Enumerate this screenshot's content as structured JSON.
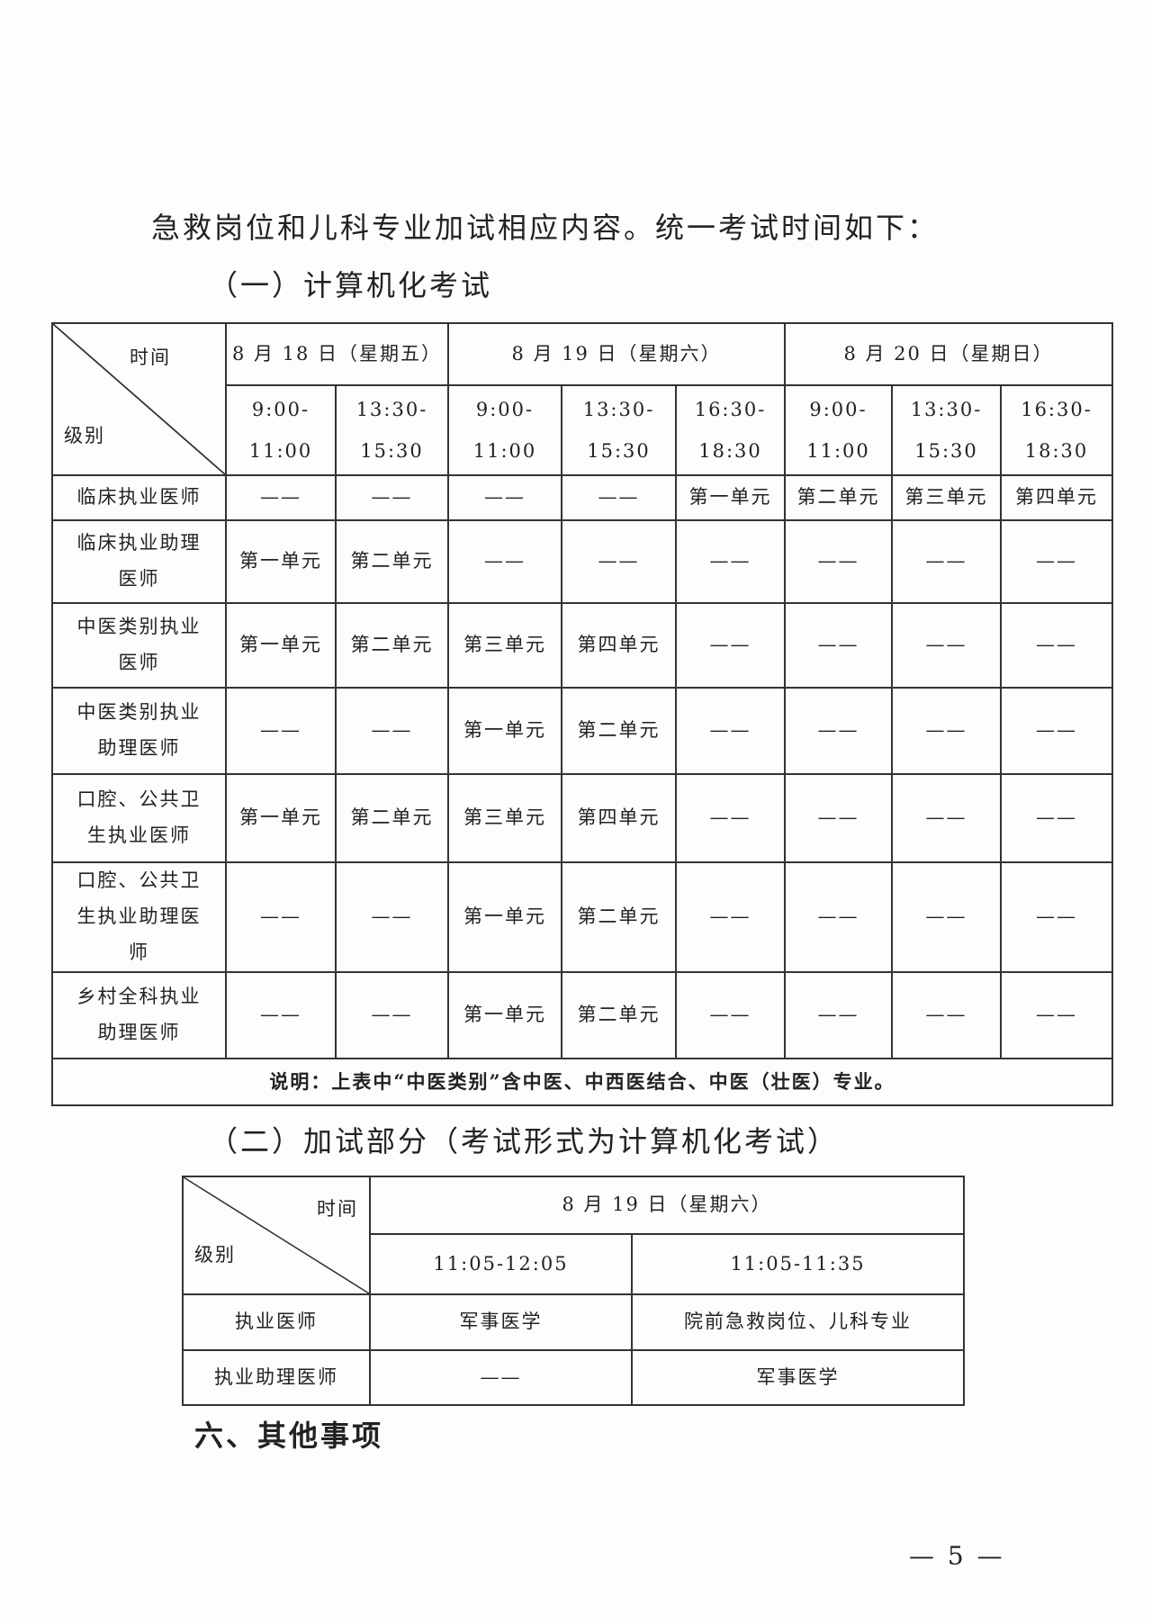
{
  "intro": "急救岗位和儿科专业加试相应内容。统一考试时间如下：",
  "section1": "（一）计算机化考试",
  "table1": {
    "corner_top": "时间",
    "corner_bottom": "级别",
    "dates": [
      "8 月 18 日（星期五）",
      "8 月 19 日（星期六）",
      "8 月 20 日（星期日）"
    ],
    "times": [
      [
        "9:00-",
        "11:00"
      ],
      [
        "13:30-",
        "15:30"
      ],
      [
        "9:00-",
        "11:00"
      ],
      [
        "13:30-",
        "15:30"
      ],
      [
        "16:30-",
        "18:30"
      ],
      [
        "9:00-",
        "11:00"
      ],
      [
        "13:30-",
        "15:30"
      ],
      [
        "16:30-",
        "18:30"
      ]
    ],
    "rows": [
      {
        "label": "临床执业医师",
        "cells": [
          "——",
          "——",
          "——",
          "——",
          "第一单元",
          "第二单元",
          "第三单元",
          "第四单元"
        ]
      },
      {
        "label": "临床执业助理医师",
        "cells": [
          "第一单元",
          "第二单元",
          "——",
          "——",
          "——",
          "——",
          "——",
          "——"
        ]
      },
      {
        "label": "中医类别执业医师",
        "cells": [
          "第一单元",
          "第二单元",
          "第三单元",
          "第四单元",
          "——",
          "——",
          "——",
          "——"
        ]
      },
      {
        "label": "中医类别执业助理医师",
        "cells": [
          "——",
          "——",
          "第一单元",
          "第二单元",
          "——",
          "——",
          "——",
          "——"
        ]
      },
      {
        "label": "口腔、公共卫生执业医师",
        "cells": [
          "第一单元",
          "第二单元",
          "第三单元",
          "第四单元",
          "——",
          "——",
          "——",
          "——"
        ]
      },
      {
        "label": "口腔、公共卫生执业助理医师",
        "cells": [
          "——",
          "——",
          "第一单元",
          "第二单元",
          "——",
          "——",
          "——",
          "——"
        ]
      },
      {
        "label": "乡村全科执业助理医师",
        "cells": [
          "——",
          "——",
          "第一单元",
          "第二单元",
          "——",
          "——",
          "——",
          "——"
        ]
      }
    ],
    "note": "说明：上表中“中医类别”含中医、中西医结合、中医（壮医）专业。"
  },
  "section2": "（二）加试部分（考试形式为计算机化考试）",
  "table2": {
    "corner_top": "时间",
    "corner_bottom": "级别",
    "date": "8 月 19 日（星期六）",
    "times": [
      "11:05-12:05",
      "11:05-11:35"
    ],
    "rows": [
      {
        "label": "执业医师",
        "cells": [
          "军事医学",
          "院前急救岗位、儿科专业"
        ]
      },
      {
        "label": "执业助理医师",
        "cells": [
          "——",
          "军事医学"
        ]
      }
    ]
  },
  "section6": "六、其他事项",
  "page_number": "— 5 —"
}
